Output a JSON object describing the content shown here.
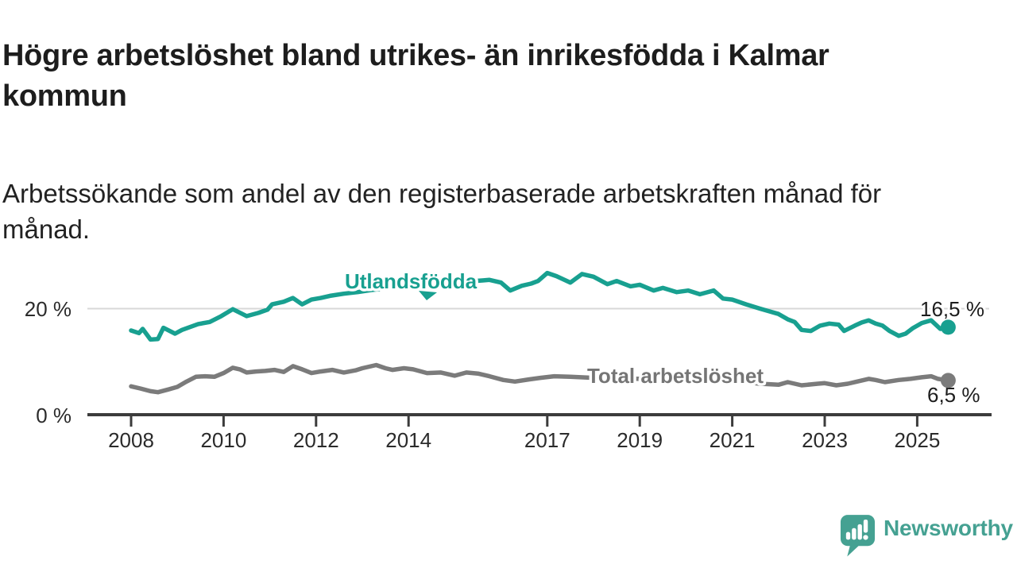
{
  "chart_data": {
    "type": "line",
    "title": "Högre arbetslöshet bland utrikes- än inrikesfödda i Kalmar kommun",
    "subtitle": "Arbetssökande som andel av den registerbaserade arbetskraften månad för månad.",
    "unit": "%",
    "x_range": [
      2007.05,
      2026.6
    ],
    "y_range": [
      0,
      30
    ],
    "grid": "single horizontal gridline at 20 %",
    "grid_color": "#d8d8d8",
    "axis_color": "#3c3c3c",
    "y_ticks": [
      {
        "value": 0,
        "label": "0 %"
      },
      {
        "value": 20,
        "label": "20 %"
      }
    ],
    "x_ticks": [
      "2008",
      "2010",
      "2012",
      "2014",
      "2017",
      "2019",
      "2021",
      "2023",
      "2025"
    ],
    "series": [
      {
        "name": "Utlandsfödda",
        "color": "#18a090",
        "end_label": "16,5 %",
        "end_value": 16.5,
        "points": [
          [
            2008.0,
            15.9
          ],
          [
            2008.17,
            15.4
          ],
          [
            2008.25,
            16.2
          ],
          [
            2008.42,
            14.2
          ],
          [
            2008.58,
            14.3
          ],
          [
            2008.7,
            16.4
          ],
          [
            2008.95,
            15.3
          ],
          [
            2009.1,
            16.0
          ],
          [
            2009.45,
            17.1
          ],
          [
            2009.7,
            17.5
          ],
          [
            2009.95,
            18.6
          ],
          [
            2010.2,
            19.9
          ],
          [
            2010.5,
            18.6
          ],
          [
            2010.75,
            19.2
          ],
          [
            2010.95,
            19.8
          ],
          [
            2011.05,
            20.8
          ],
          [
            2011.3,
            21.3
          ],
          [
            2011.5,
            22.0
          ],
          [
            2011.7,
            20.8
          ],
          [
            2011.9,
            21.7
          ],
          [
            2012.1,
            22.0
          ],
          [
            2012.3,
            22.4
          ],
          [
            2012.6,
            22.8
          ],
          [
            2012.9,
            23.1
          ],
          [
            2013.2,
            23.5
          ],
          [
            2013.5,
            23.8
          ],
          [
            2013.8,
            24.0
          ],
          [
            2014.1,
            24.3
          ],
          [
            2014.4,
            24.5
          ],
          [
            2014.7,
            24.7
          ],
          [
            2015.0,
            24.9
          ],
          [
            2015.3,
            25.1
          ],
          [
            2015.6,
            25.3
          ],
          [
            2015.75,
            25.4
          ],
          [
            2016.0,
            24.9
          ],
          [
            2016.2,
            23.4
          ],
          [
            2016.45,
            24.3
          ],
          [
            2016.65,
            24.7
          ],
          [
            2016.8,
            25.2
          ],
          [
            2017.0,
            26.7
          ],
          [
            2017.2,
            26.1
          ],
          [
            2017.5,
            24.9
          ],
          [
            2017.75,
            26.5
          ],
          [
            2018.0,
            26.0
          ],
          [
            2018.3,
            24.6
          ],
          [
            2018.5,
            25.2
          ],
          [
            2018.8,
            24.2
          ],
          [
            2019.0,
            24.5
          ],
          [
            2019.3,
            23.4
          ],
          [
            2019.5,
            23.9
          ],
          [
            2019.8,
            23.1
          ],
          [
            2020.05,
            23.4
          ],
          [
            2020.3,
            22.7
          ],
          [
            2020.6,
            23.4
          ],
          [
            2020.8,
            21.9
          ],
          [
            2021.0,
            21.7
          ],
          [
            2021.3,
            20.8
          ],
          [
            2021.6,
            20.0
          ],
          [
            2021.8,
            19.5
          ],
          [
            2022.0,
            19.0
          ],
          [
            2022.2,
            18.0
          ],
          [
            2022.35,
            17.5
          ],
          [
            2022.5,
            16.0
          ],
          [
            2022.7,
            15.8
          ],
          [
            2022.9,
            16.8
          ],
          [
            2023.1,
            17.2
          ],
          [
            2023.3,
            17.0
          ],
          [
            2023.42,
            15.8
          ],
          [
            2023.65,
            16.8
          ],
          [
            2023.8,
            17.4
          ],
          [
            2023.95,
            17.8
          ],
          [
            2024.1,
            17.2
          ],
          [
            2024.25,
            16.8
          ],
          [
            2024.4,
            15.8
          ],
          [
            2024.6,
            14.9
          ],
          [
            2024.75,
            15.3
          ],
          [
            2024.9,
            16.3
          ],
          [
            2025.1,
            17.3
          ],
          [
            2025.3,
            17.8
          ],
          [
            2025.5,
            16.2
          ],
          [
            2025.67,
            16.5
          ]
        ]
      },
      {
        "name": "Total arbetslöshet",
        "color": "#7b7b7b",
        "label_color": "#757575",
        "end_label": "6,5 %",
        "end_value": 6.5,
        "points": [
          [
            2008.0,
            5.4
          ],
          [
            2008.2,
            5.0
          ],
          [
            2008.42,
            4.5
          ],
          [
            2008.58,
            4.3
          ],
          [
            2008.8,
            4.8
          ],
          [
            2009.0,
            5.3
          ],
          [
            2009.2,
            6.3
          ],
          [
            2009.4,
            7.2
          ],
          [
            2009.6,
            7.3
          ],
          [
            2009.8,
            7.2
          ],
          [
            2010.0,
            7.9
          ],
          [
            2010.2,
            8.9
          ],
          [
            2010.35,
            8.6
          ],
          [
            2010.5,
            8.0
          ],
          [
            2010.7,
            8.2
          ],
          [
            2010.9,
            8.3
          ],
          [
            2011.1,
            8.5
          ],
          [
            2011.3,
            8.1
          ],
          [
            2011.5,
            9.2
          ],
          [
            2011.7,
            8.6
          ],
          [
            2011.9,
            7.9
          ],
          [
            2012.1,
            8.2
          ],
          [
            2012.35,
            8.5
          ],
          [
            2012.6,
            8.0
          ],
          [
            2012.85,
            8.4
          ],
          [
            2013.0,
            8.8
          ],
          [
            2013.3,
            9.4
          ],
          [
            2013.5,
            8.8
          ],
          [
            2013.65,
            8.5
          ],
          [
            2013.9,
            8.8
          ],
          [
            2014.1,
            8.6
          ],
          [
            2014.4,
            7.9
          ],
          [
            2014.7,
            8.0
          ],
          [
            2015.0,
            7.4
          ],
          [
            2015.25,
            8.0
          ],
          [
            2015.5,
            7.8
          ],
          [
            2015.75,
            7.3
          ],
          [
            2016.05,
            6.6
          ],
          [
            2016.3,
            6.3
          ],
          [
            2016.6,
            6.7
          ],
          [
            2016.85,
            7.0
          ],
          [
            2017.15,
            7.3
          ],
          [
            2017.5,
            7.2
          ],
          [
            2018.0,
            7.0
          ],
          [
            2018.5,
            6.9
          ],
          [
            2019.0,
            6.8
          ],
          [
            2019.5,
            6.7
          ],
          [
            2020.0,
            6.9
          ],
          [
            2020.5,
            7.1
          ],
          [
            2020.9,
            6.7
          ],
          [
            2021.2,
            6.3
          ],
          [
            2021.6,
            5.9
          ],
          [
            2022.0,
            5.7
          ],
          [
            2022.2,
            6.2
          ],
          [
            2022.35,
            5.9
          ],
          [
            2022.5,
            5.6
          ],
          [
            2022.85,
            5.9
          ],
          [
            2023.0,
            6.0
          ],
          [
            2023.25,
            5.6
          ],
          [
            2023.5,
            5.9
          ],
          [
            2023.7,
            6.3
          ],
          [
            2023.95,
            6.8
          ],
          [
            2024.1,
            6.6
          ],
          [
            2024.3,
            6.2
          ],
          [
            2024.6,
            6.6
          ],
          [
            2024.85,
            6.8
          ],
          [
            2025.1,
            7.1
          ],
          [
            2025.3,
            7.3
          ],
          [
            2025.45,
            6.8
          ],
          [
            2025.67,
            6.5
          ]
        ]
      }
    ]
  },
  "footer": {
    "logo_text": "Newsworthy",
    "logo_color": "#45a192",
    "logo_icon": "bar-chart-speech-bubble-icon"
  }
}
